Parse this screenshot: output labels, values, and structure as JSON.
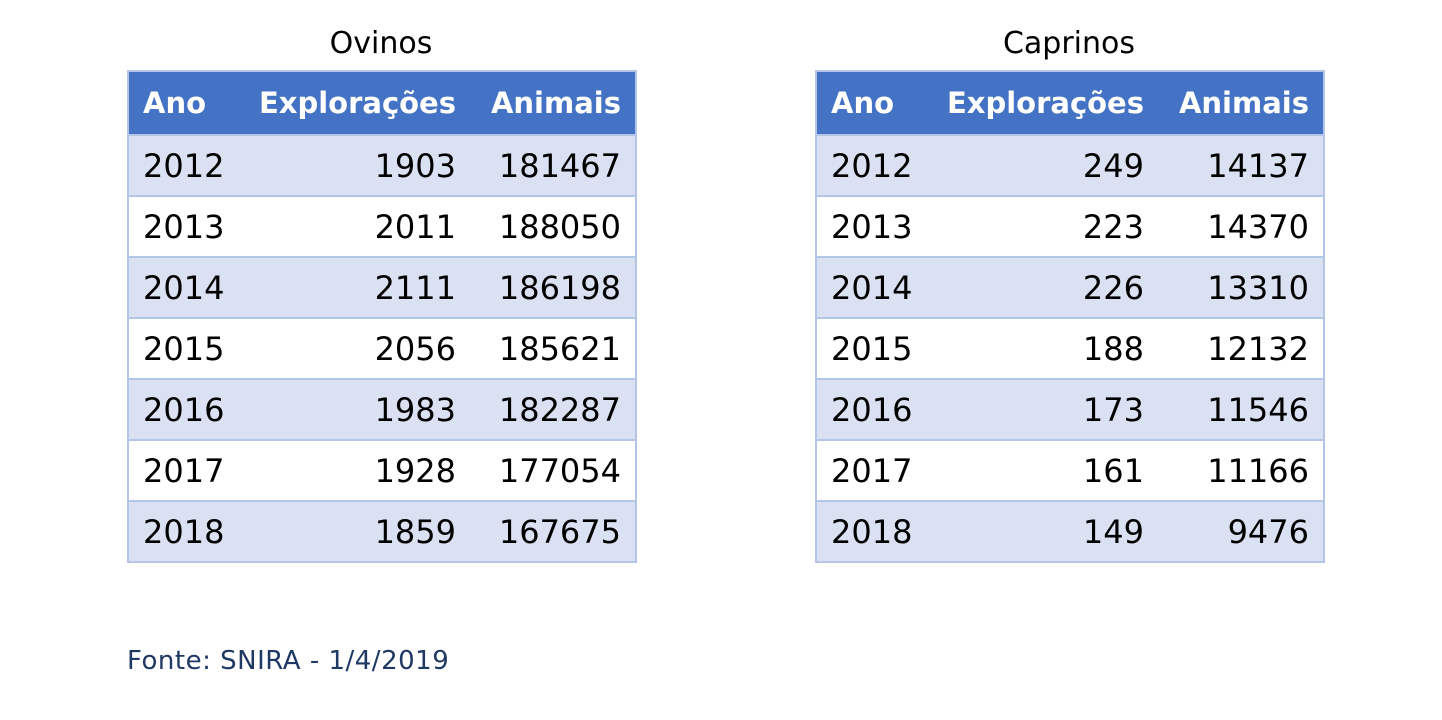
{
  "ovinos": {
    "title": "Ovinos",
    "headers": [
      "Ano",
      "Explorações",
      "Animais"
    ],
    "rows": [
      [
        "2012",
        "1903",
        "181467"
      ],
      [
        "2013",
        "2011",
        "188050"
      ],
      [
        "2014",
        "2111",
        "186198"
      ],
      [
        "2015",
        "2056",
        "185621"
      ],
      [
        "2016",
        "1983",
        "182287"
      ],
      [
        "2017",
        "1928",
        "177054"
      ],
      [
        "2018",
        "1859",
        "167675"
      ]
    ]
  },
  "caprinos": {
    "title": "Caprinos",
    "headers": [
      "Ano",
      "Explorações",
      "Animais"
    ],
    "rows": [
      [
        "2012",
        "249",
        "14137"
      ],
      [
        "2013",
        "223",
        "14370"
      ],
      [
        "2014",
        "226",
        "13310"
      ],
      [
        "2015",
        "188",
        "12132"
      ],
      [
        "2016",
        "173",
        "11546"
      ],
      [
        "2017",
        "161",
        "11166"
      ],
      [
        "2018",
        "149",
        "9476"
      ]
    ]
  },
  "source": "Fonte: SNIRA - 1/4/2019",
  "colors": {
    "header_bg": "#4472c4",
    "band_bg": "#d9e1f2",
    "border": "#b4c6e7",
    "source_text": "#1f3864"
  }
}
